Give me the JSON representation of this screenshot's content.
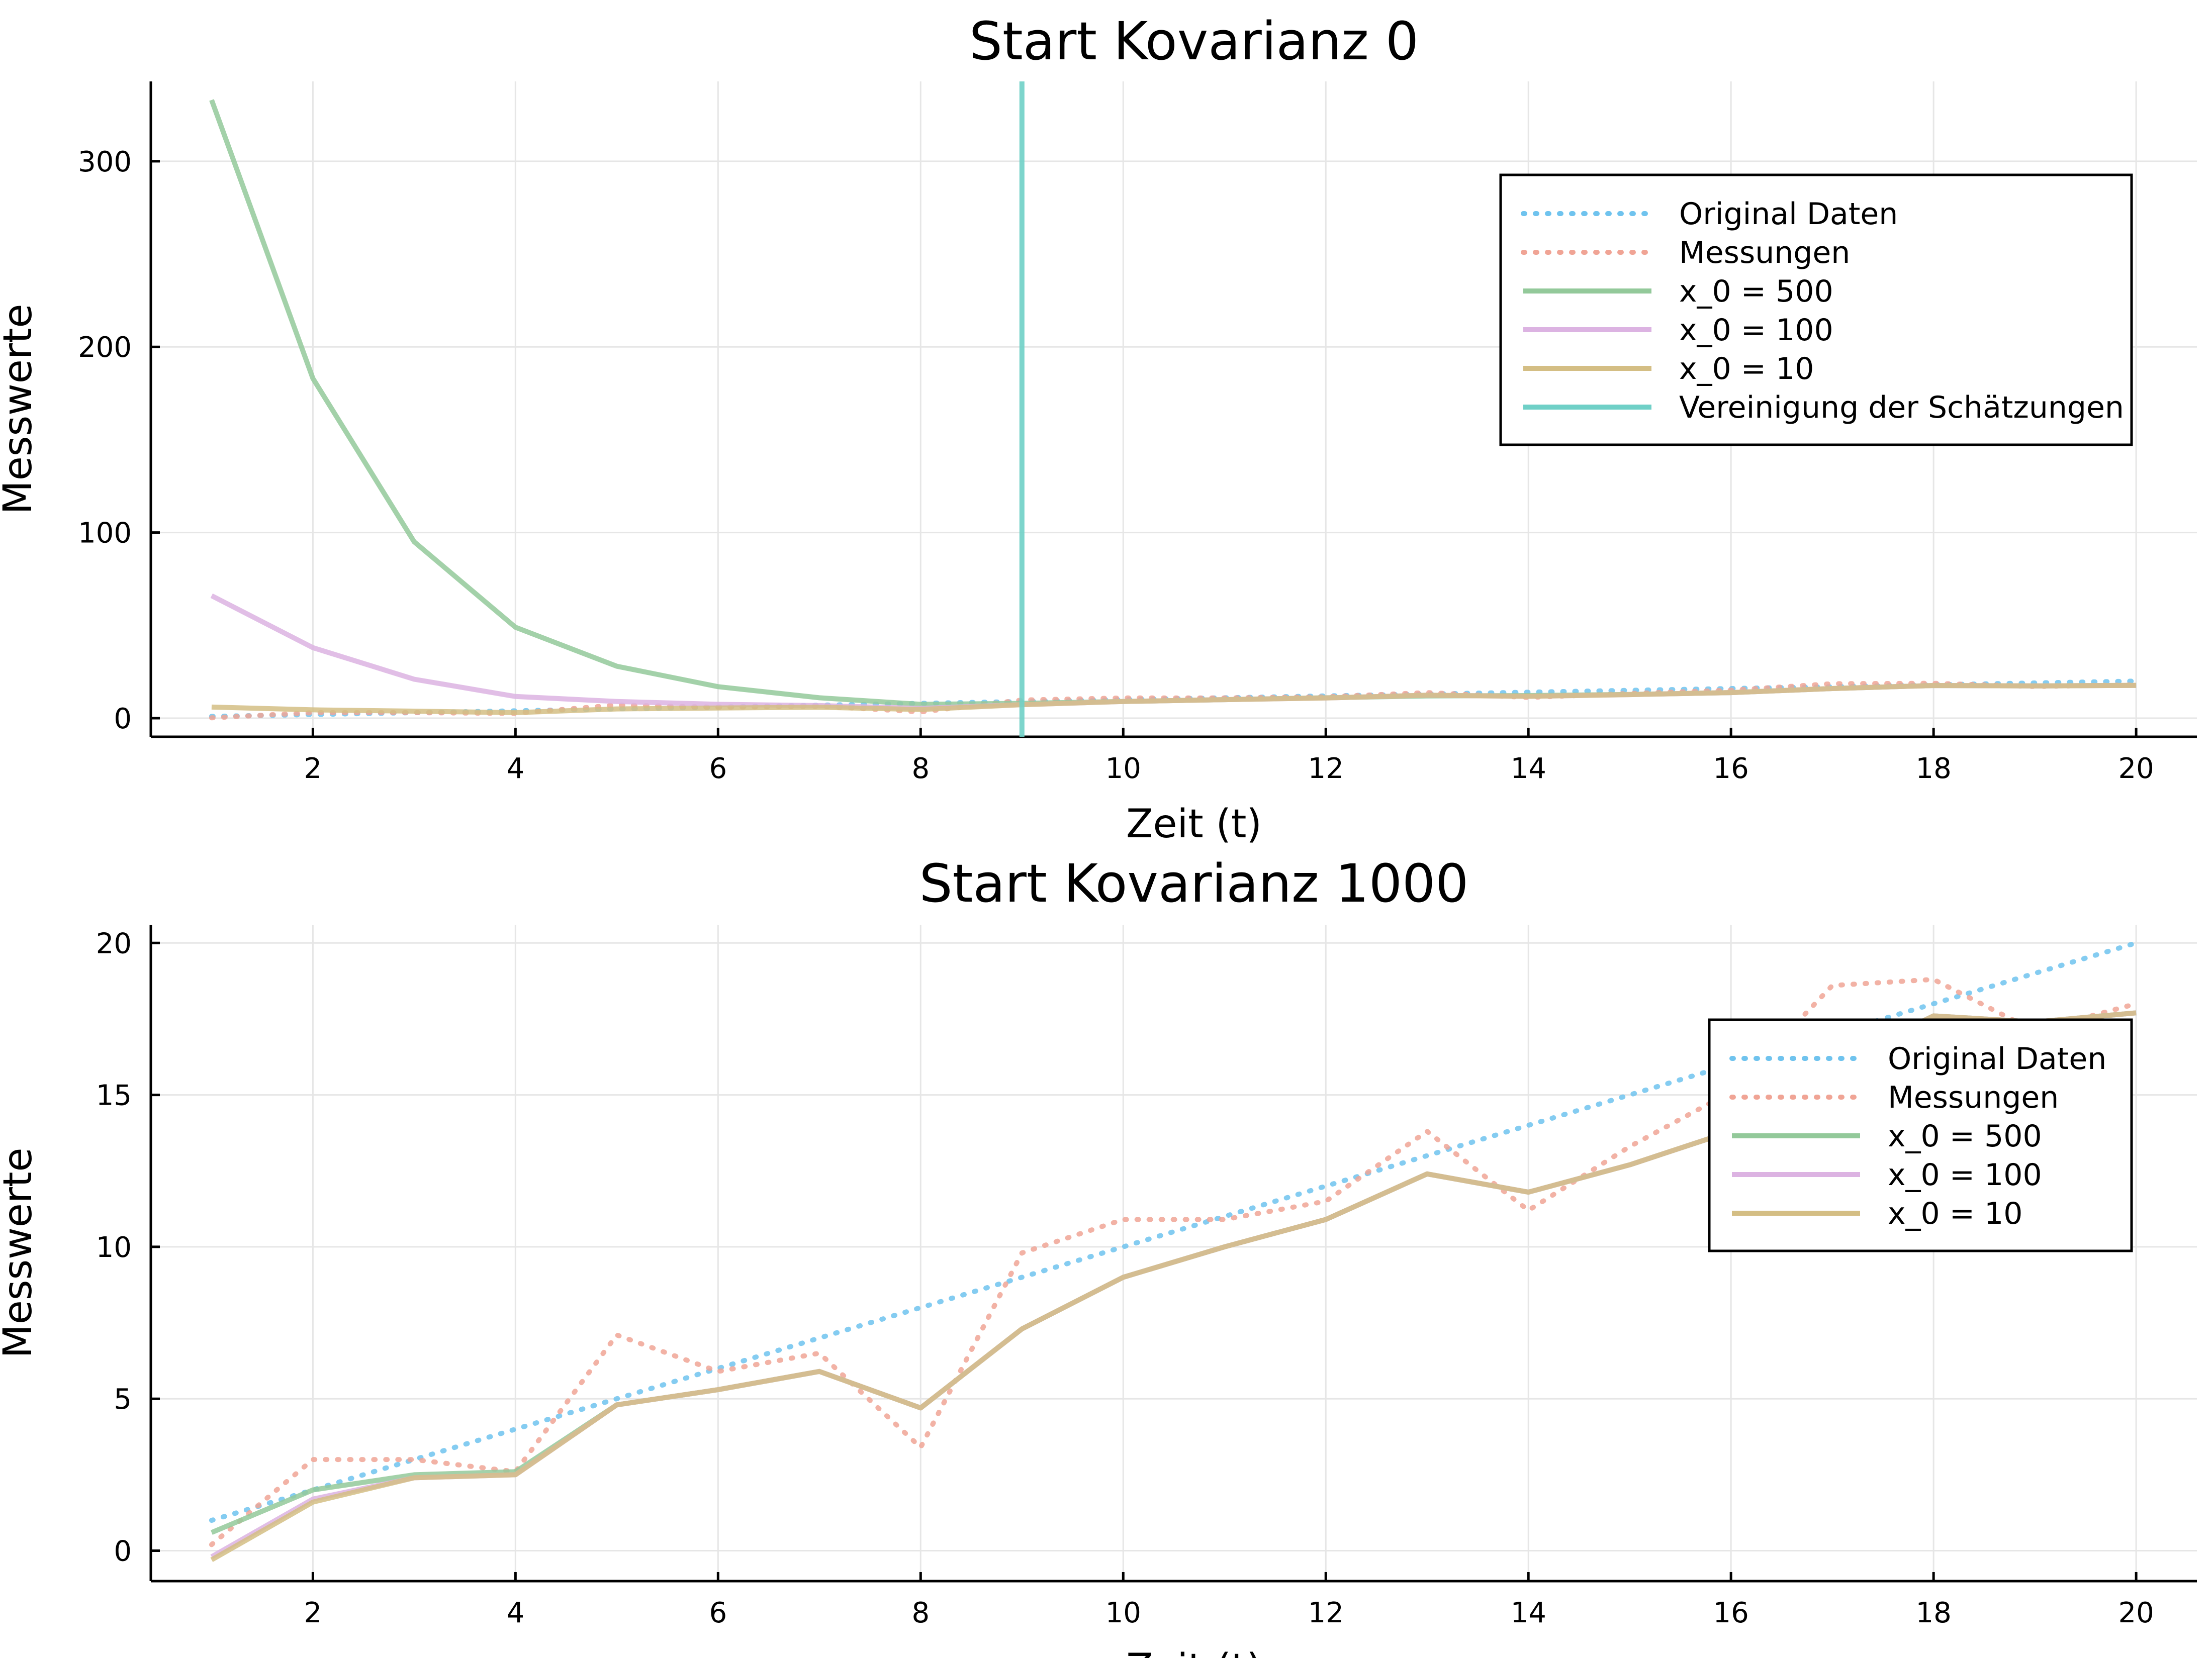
{
  "colors": {
    "original": "#6fc3ee",
    "messungen": "#f0a495",
    "x0_500": "#93c99a",
    "x0_100": "#dcb3e2",
    "x0_10": "#d4be84",
    "vereinigung": "#6fd0c7",
    "estimate_overlap": "#a79468"
  },
  "chart_data": [
    {
      "type": "line",
      "title": "Start Kovarianz 0",
      "xlabel": "Zeit (t)",
      "ylabel": "Messwerte",
      "xlim": [
        0.4,
        20.6
      ],
      "ylim": [
        -10,
        343
      ],
      "xticks": [
        2,
        4,
        6,
        8,
        10,
        12,
        14,
        16,
        18,
        20
      ],
      "yticks": [
        0,
        100,
        200,
        300
      ],
      "grid": true,
      "legend_position": "top-right",
      "x": [
        1,
        2,
        3,
        4,
        5,
        6,
        7,
        8,
        9,
        10,
        11,
        12,
        13,
        14,
        15,
        16,
        17,
        18,
        19,
        20
      ],
      "series": [
        {
          "name": "Original Daten",
          "style": "dotted",
          "color_key": "original",
          "values": [
            1,
            2,
            3,
            4,
            5,
            6,
            7,
            8,
            9,
            10,
            11,
            12,
            13,
            14,
            15,
            16,
            17,
            18,
            19,
            20
          ]
        },
        {
          "name": "Messungen",
          "style": "dotted",
          "color_key": "messungen",
          "values": [
            0.2,
            3,
            3,
            2.6,
            7.1,
            5.9,
            6.5,
            3.4,
            9.8,
            10.9,
            10.9,
            11.5,
            13.8,
            11.2,
            13.3,
            15.1,
            18.6,
            18.8,
            17.1,
            18
          ]
        },
        {
          "name": "x_0 = 500",
          "style": "solid",
          "color_key": "x0_500",
          "values": [
            333,
            183,
            95,
            49,
            28,
            17,
            11,
            7.5,
            8,
            9,
            10,
            11,
            12,
            12.2,
            12.8,
            13.8,
            16,
            17.6,
            17.4,
            17.7
          ]
        },
        {
          "name": "x_0 = 100",
          "style": "solid",
          "color_key": "x0_100",
          "values": [
            66,
            38,
            21,
            11.7,
            9,
            7.5,
            6.8,
            5.3,
            7.3,
            9,
            10,
            10.9,
            12.4,
            11.8,
            12.7,
            13.8,
            16,
            17.6,
            17.4,
            17.7
          ]
        },
        {
          "name": "x_0 = 10",
          "style": "solid",
          "color_key": "x0_10",
          "values": [
            6,
            4.5,
            3.8,
            3,
            5,
            5.5,
            5.9,
            4.7,
            7.3,
            9,
            10,
            10.9,
            12.4,
            11.8,
            12.7,
            13.8,
            16,
            17.6,
            17.4,
            17.7
          ]
        }
      ],
      "vline": {
        "name": "Vereinigung der Schätzungen",
        "x": 9,
        "color_key": "vereinigung"
      }
    },
    {
      "type": "line",
      "title": "Start Kovarianz 1000",
      "xlabel": "Zeit (t)",
      "ylabel": "Messwerte",
      "xlim": [
        0.4,
        20.6
      ],
      "ylim": [
        -1,
        20.6
      ],
      "xticks": [
        2,
        4,
        6,
        8,
        10,
        12,
        14,
        16,
        18,
        20
      ],
      "yticks": [
        0,
        5,
        10,
        15,
        20
      ],
      "grid": true,
      "legend_position": "right",
      "x": [
        1,
        2,
        3,
        4,
        5,
        6,
        7,
        8,
        9,
        10,
        11,
        12,
        13,
        14,
        15,
        16,
        17,
        18,
        19,
        20
      ],
      "series": [
        {
          "name": "Original Daten",
          "style": "dotted",
          "color_key": "original",
          "values": [
            1,
            2,
            3,
            4,
            5,
            6,
            7,
            8,
            9,
            10,
            11,
            12,
            13,
            14,
            15,
            16,
            17,
            18,
            19,
            20
          ]
        },
        {
          "name": "Messungen",
          "style": "dotted",
          "color_key": "messungen",
          "values": [
            0.2,
            3,
            3,
            2.6,
            7.1,
            5.9,
            6.5,
            3.4,
            9.8,
            10.9,
            10.9,
            11.5,
            13.8,
            11.2,
            13.3,
            15.1,
            18.6,
            18.8,
            17.1,
            18
          ]
        },
        {
          "name": "x_0 = 500",
          "style": "solid",
          "color_key": "x0_500",
          "values": [
            0.6,
            2,
            2.5,
            2.6,
            4.8,
            5.3,
            5.9,
            4.7,
            7.3,
            9,
            10,
            10.9,
            12.4,
            11.8,
            12.7,
            13.8,
            16,
            17.6,
            17.4,
            17.7
          ]
        },
        {
          "name": "x_0 = 100",
          "style": "solid",
          "color_key": "x0_100",
          "values": [
            -0.2,
            1.7,
            2.4,
            2.5,
            4.8,
            5.3,
            5.9,
            4.7,
            7.3,
            9,
            10,
            10.9,
            12.4,
            11.8,
            12.7,
            13.8,
            16,
            17.6,
            17.4,
            17.7
          ]
        },
        {
          "name": "x_0 = 10",
          "style": "solid",
          "color_key": "x0_10",
          "values": [
            -0.3,
            1.6,
            2.4,
            2.5,
            4.8,
            5.3,
            5.9,
            4.7,
            7.3,
            9,
            10,
            10.9,
            12.4,
            11.8,
            12.7,
            13.8,
            16,
            17.6,
            17.4,
            17.7
          ]
        }
      ]
    }
  ]
}
